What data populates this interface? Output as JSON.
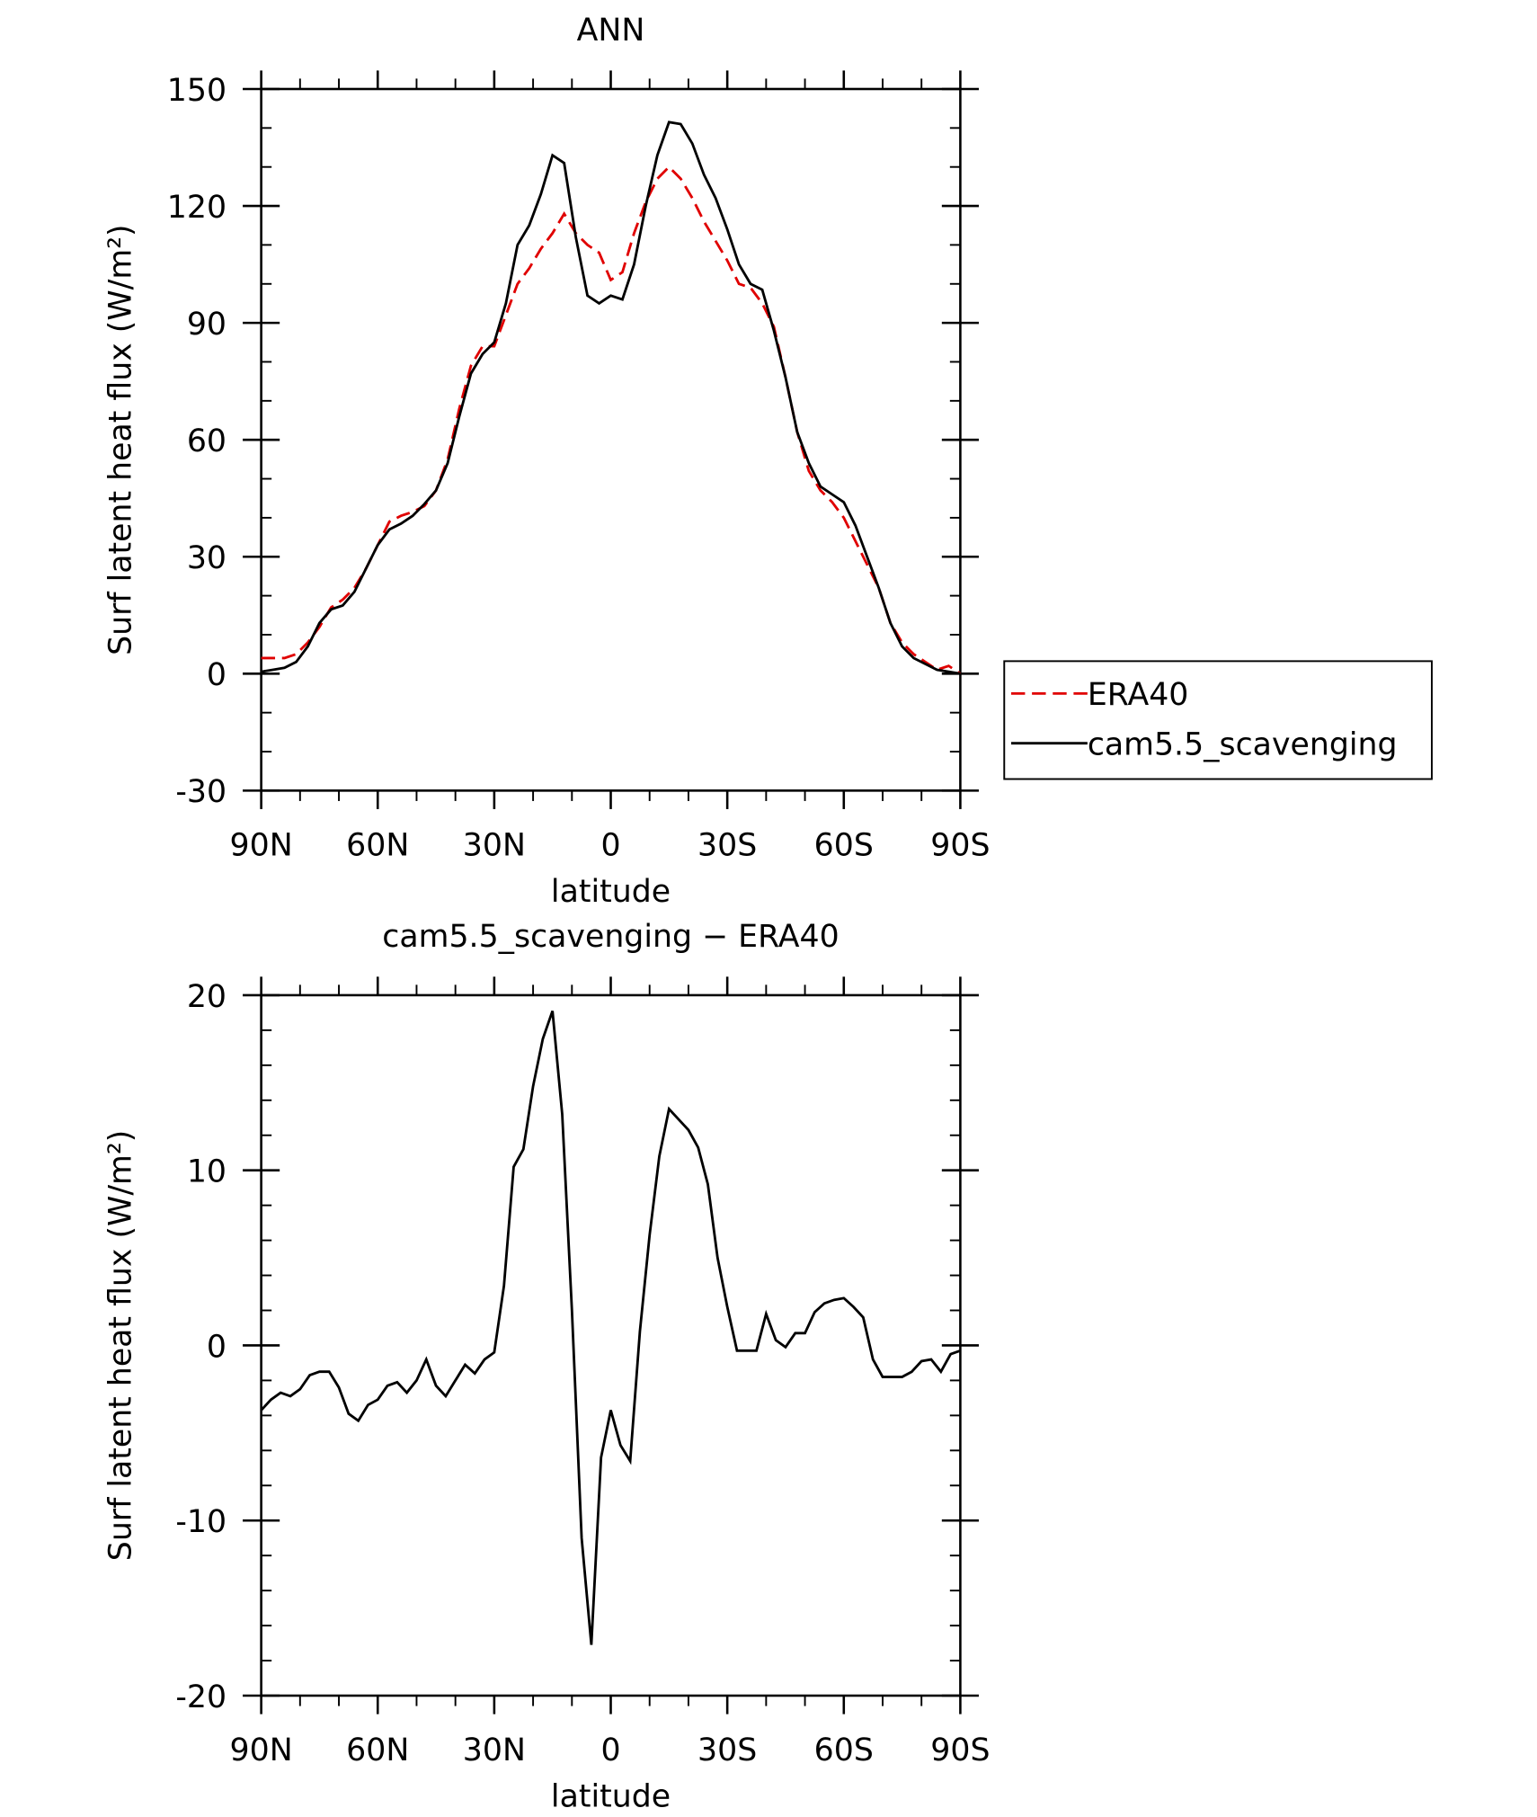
{
  "chart_data": [
    {
      "type": "line",
      "title": "ANN",
      "xlabel": "latitude",
      "ylabel": "Surf latent heat flux (W/m²)",
      "legend": "right",
      "xlim": [
        90,
        -90
      ],
      "ylim": [
        -30,
        150
      ],
      "xticks": [
        {
          "value": 90,
          "label": "90N"
        },
        {
          "value": 60,
          "label": "60N"
        },
        {
          "value": 30,
          "label": "30N"
        },
        0,
        {
          "value": -30,
          "label": "30S"
        },
        {
          "value": -60,
          "label": "60S"
        },
        {
          "value": -90,
          "label": "90S"
        }
      ],
      "yticks": [
        -30,
        0,
        30,
        60,
        90,
        120,
        150
      ],
      "x": [
        90,
        87,
        84,
        81,
        78,
        75,
        72,
        69,
        66,
        63,
        60,
        57,
        54,
        51,
        48,
        45,
        42,
        39,
        36,
        33,
        30,
        27,
        24,
        21,
        18,
        15,
        12,
        9,
        6,
        3,
        0,
        -3,
        -6,
        -9,
        -12,
        -15,
        -18,
        -21,
        -24,
        -27,
        -30,
        -33,
        -36,
        -39,
        -42,
        -45,
        -48,
        -51,
        -54,
        -57,
        -60,
        -63,
        -66,
        -69,
        -72,
        -75,
        -78,
        -81,
        -84,
        -87,
        -90
      ],
      "series": [
        {
          "name": "ERA40",
          "color": "#e00000",
          "dash": true,
          "values": [
            4,
            4,
            4,
            5,
            8,
            12,
            17,
            19,
            22,
            27,
            33,
            39,
            40.5,
            41.5,
            43,
            47,
            55,
            68,
            79,
            84,
            84,
            92,
            100,
            104,
            109,
            113,
            118,
            113,
            110,
            108,
            101,
            103,
            113,
            121,
            127,
            130,
            127,
            122,
            116,
            111,
            106,
            100,
            99,
            95,
            89,
            76,
            62,
            52,
            47,
            44,
            40,
            34,
            28,
            22,
            13,
            8,
            5,
            3,
            1,
            2,
            0
          ]
        },
        {
          "name": "cam5.5_scavenging",
          "color": "#000000",
          "dash": false,
          "values": [
            0.5,
            1,
            1.5,
            3,
            7,
            13,
            16.5,
            17.5,
            21,
            27,
            33,
            37,
            38.5,
            40.5,
            43.5,
            47,
            54,
            66,
            77,
            82,
            85,
            95,
            110,
            115,
            123,
            133,
            131,
            112,
            97,
            95,
            97,
            96,
            105,
            120,
            133,
            141.5,
            141,
            136,
            128,
            122,
            114,
            105,
            100,
            98.5,
            88,
            76,
            62,
            54,
            48,
            46,
            44,
            38,
            30,
            22,
            13,
            7,
            4,
            2.5,
            1,
            0.5,
            0
          ]
        }
      ]
    },
    {
      "type": "line",
      "title": "cam5.5_scavenging − ERA40",
      "xlabel": "latitude",
      "ylabel": "Surf latent heat flux (W/m²)",
      "xlim": [
        90,
        -90
      ],
      "ylim": [
        -20,
        20
      ],
      "xticks": [
        {
          "value": 90,
          "label": "90N"
        },
        {
          "value": 60,
          "label": "60N"
        },
        {
          "value": 30,
          "label": "30N"
        },
        0,
        {
          "value": -30,
          "label": "30S"
        },
        {
          "value": -60,
          "label": "60S"
        },
        {
          "value": -90,
          "label": "90S"
        }
      ],
      "yticks": [
        -20,
        -10,
        0,
        10,
        20
      ],
      "x": [
        90,
        87.5,
        85,
        82.5,
        80,
        77.5,
        75,
        72.5,
        70,
        67.5,
        65,
        62.5,
        60,
        57.5,
        55,
        52.5,
        50,
        47.5,
        45,
        42.5,
        40,
        37.5,
        35,
        32.5,
        30,
        27.5,
        25,
        22.5,
        20,
        17.5,
        15,
        12.5,
        10,
        7.5,
        5,
        2.5,
        0,
        -2.5,
        -5,
        -7.5,
        -10,
        -12.5,
        -15,
        -17.5,
        -20,
        -22.5,
        -25,
        -27.5,
        -30,
        -32.5,
        -35,
        -37.5,
        -40,
        -42.5,
        -45,
        -47.5,
        -50,
        -52.5,
        -55,
        -57.5,
        -60,
        -62.5,
        -65,
        -67.5,
        -70,
        -72.5,
        -75,
        -77.5,
        -80,
        -82.5,
        -85,
        -87.5,
        -90
      ],
      "series": [
        {
          "color": "#000000",
          "values": [
            -3.7,
            -3.1,
            -2.7,
            -2.9,
            -2.5,
            -1.7,
            -1.5,
            -1.5,
            -2.4,
            -3.9,
            -4.3,
            -3.4,
            -3.1,
            -2.3,
            -2.1,
            -2.7,
            -2.0,
            -0.8,
            -2.3,
            -2.9,
            -2.0,
            -1.1,
            -1.6,
            -0.8,
            -0.4,
            3.4,
            10.2,
            11.2,
            14.8,
            17.5,
            19.1,
            13.2,
            2,
            -11,
            -17.1,
            -6.4,
            -3.7,
            -5.7,
            -6.6,
            0.8,
            6.3,
            10.8,
            13.5,
            12.9,
            12.3,
            11.3,
            9.2,
            5,
            2.2,
            -0.3,
            -0.3,
            -0.3,
            1.8,
            0.3,
            -0.1,
            0.7,
            0.7,
            1.9,
            2.4,
            2.6,
            2.7,
            2.2,
            1.6,
            -0.8,
            -1.8,
            -1.8,
            -1.8,
            -1.5,
            -0.9,
            -0.8,
            -1.5,
            -0.5,
            -0.3
          ]
        }
      ]
    }
  ]
}
